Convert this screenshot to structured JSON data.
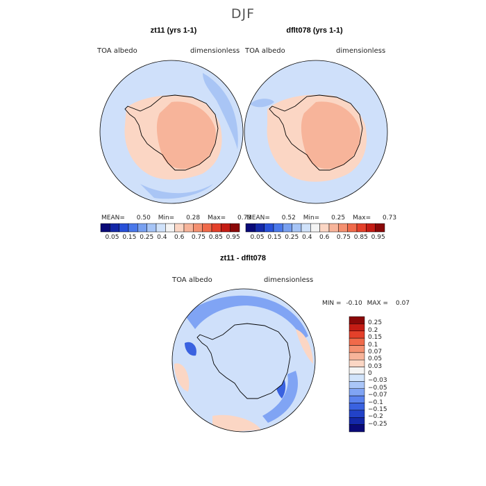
{
  "figure": {
    "title": "DJF"
  },
  "panels": [
    {
      "title": "zt11 (yrs 1-1)",
      "variable": "TOA albedo",
      "units": "dimensionless",
      "stats": {
        "mean_label": "MEAN=",
        "mean": "0.50",
        "min_label": "Min=",
        "min": "0.28",
        "max_label": "Max=",
        "max": "0.73"
      }
    },
    {
      "title": "dflt078 (yrs 1-1)",
      "variable": "TOA albedo",
      "units": "dimensionless",
      "stats": {
        "mean_label": "MEAN=",
        "mean": "0.52",
        "min_label": "Min=",
        "min": "0.25",
        "max_label": "Max=",
        "max": "0.73"
      }
    },
    {
      "title": "zt11 - dflt078",
      "variable": "TOA albedo",
      "units": "dimensionless",
      "stats": {
        "min_label": "MIN =",
        "min": "-0.10",
        "max_label": "MAX =",
        "max": "0.07"
      }
    }
  ],
  "colorbar_abs": {
    "colors": [
      "#0a0a78",
      "#1428a8",
      "#2850d8",
      "#4a78ea",
      "#78a0f0",
      "#a6c4f6",
      "#d0e2fa",
      "#f4f4f4",
      "#fbd6c4",
      "#f7b49a",
      "#f49070",
      "#f06a4a",
      "#e4402a",
      "#c41c14",
      "#8a0808"
    ],
    "labels": [
      "0.05",
      "0.15",
      "0.25",
      "0.4",
      "0.6",
      "0.75",
      "0.85",
      "0.95"
    ]
  },
  "colorbar_diff": {
    "colors": [
      "#0a0a78",
      "#1428a8",
      "#2242c8",
      "#3a62e0",
      "#5a82ee",
      "#80a4f4",
      "#aac6f8",
      "#d2e4fb",
      "#f4f4f4",
      "#fbd6c4",
      "#f7b49a",
      "#f49070",
      "#f06a4a",
      "#e4402a",
      "#c41c14",
      "#8a0808"
    ],
    "labels": [
      "0.25",
      "0.2",
      "0.15",
      "0.1",
      "0.07",
      "0.05",
      "0.03",
      "0",
      "−0.03",
      "−0.05",
      "−0.07",
      "−0.1",
      "−0.15",
      "−0.2",
      "−0.25"
    ]
  },
  "map_colors": {
    "ocean_abs": "#cfe0fa",
    "ocean_abs_darker": "#a9c5f5",
    "ice_light": "#fbd6c4",
    "ice_mid": "#f7b49a",
    "diff_ocean": "#cfe0fa",
    "diff_blue": "#80a4f4",
    "diff_dark": "#3a62e0",
    "diff_orange": "#fbd6c4",
    "coast": "#000000"
  }
}
